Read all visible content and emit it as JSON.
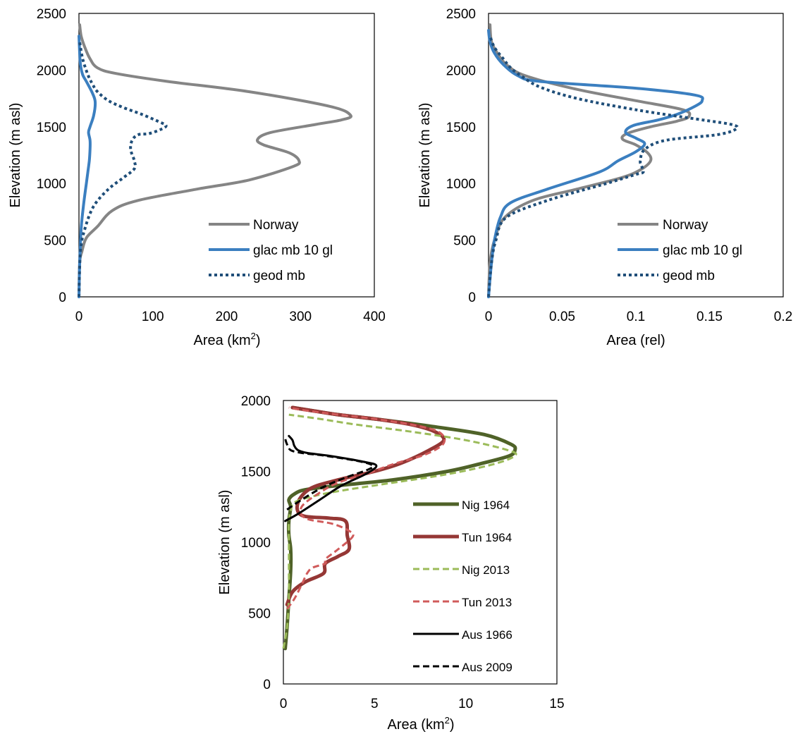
{
  "colors": {
    "norway": "#858585",
    "glac_mb": "#3b7fc0",
    "geod_mb": "#1f4e79",
    "nig1964": "#4f6228",
    "tun1964": "#953735",
    "nig2013": "#9bbb59",
    "tun2013": "#d05b5b",
    "aus1966": "#000000",
    "aus2009": "#000000"
  },
  "chart_data": [
    {
      "type": "line",
      "xlabel": "Area (km",
      "xlabel_sup": "2",
      "xlabel_end": ")",
      "ylabel": "Elevation (m asl)",
      "xlim": [
        0,
        400
      ],
      "ylim": [
        0,
        2500
      ],
      "xticks": [
        "0",
        "100",
        "200",
        "300",
        "400"
      ],
      "yticks": [
        "0",
        "500",
        "1000",
        "1500",
        "2000",
        "2500"
      ],
      "legend": "bottom-right",
      "series": [
        {
          "name": "Norway",
          "style": "solid",
          "color_key": "norway",
          "x": [
            0,
            1,
            4,
            10,
            25,
            45,
            80,
            160,
            230,
            290,
            298,
            285,
            250,
            242,
            260,
            320,
            355,
            368,
            340,
            230,
            120,
            50,
            25,
            15,
            8,
            3,
            1
          ],
          "y": [
            0,
            300,
            400,
            520,
            620,
            760,
            850,
            950,
            1030,
            1150,
            1200,
            1270,
            1340,
            1390,
            1450,
            1520,
            1560,
            1600,
            1680,
            1810,
            1900,
            1970,
            2020,
            2100,
            2200,
            2300,
            2400
          ]
        },
        {
          "name": "glac mb 10 gl",
          "style": "solid",
          "color_key": "glac_mb",
          "x": [
            0,
            1,
            3,
            6,
            10,
            12,
            14,
            15,
            15,
            13,
            15,
            20,
            22,
            18,
            10,
            5,
            2,
            1,
            0
          ],
          "y": [
            0,
            300,
            600,
            800,
            1000,
            1100,
            1200,
            1300,
            1380,
            1450,
            1500,
            1600,
            1720,
            1800,
            1900,
            1960,
            2050,
            2150,
            2300
          ]
        },
        {
          "name": "geod mb",
          "style": "dotted",
          "color_key": "geod_mb",
          "x": [
            0,
            2,
            8,
            20,
            40,
            60,
            75,
            75,
            70,
            72,
            80,
            95,
            112,
            118,
            110,
            85,
            60,
            40,
            25,
            18,
            12,
            5,
            1
          ],
          "y": [
            0,
            400,
            600,
            800,
            950,
            1050,
            1130,
            1200,
            1300,
            1380,
            1430,
            1440,
            1480,
            1510,
            1540,
            1610,
            1670,
            1730,
            1810,
            1880,
            1960,
            2100,
            2250
          ]
        }
      ]
    },
    {
      "type": "line",
      "xlabel": "Area (rel)",
      "ylabel": "Elevation (m asl)",
      "xlim": [
        0,
        0.2
      ],
      "ylim": [
        0,
        2500
      ],
      "xticks": [
        "0",
        "0.05",
        "0.1",
        "0.15",
        "0.2"
      ],
      "yticks": [
        "0",
        "500",
        "1000",
        "1500",
        "2000",
        "2500"
      ],
      "legend": "bottom-right",
      "series": [
        {
          "name": "Norway",
          "style": "solid",
          "color_key": "norway",
          "x": [
            0,
            0.001,
            0.004,
            0.011,
            0.03,
            0.06,
            0.09,
            0.103,
            0.11,
            0.108,
            0.1,
            0.091,
            0.094,
            0.11,
            0.128,
            0.136,
            0.132,
            0.1,
            0.06,
            0.025,
            0.012,
            0.006,
            0.002,
            0.001
          ],
          "y": [
            0,
            300,
            500,
            700,
            850,
            950,
            1050,
            1120,
            1200,
            1270,
            1340,
            1390,
            1440,
            1500,
            1550,
            1590,
            1650,
            1730,
            1830,
            1950,
            2050,
            2150,
            2250,
            2400
          ]
        },
        {
          "name": "glac mb 10 gl",
          "style": "solid",
          "color_key": "glac_mb",
          "x": [
            0,
            0.002,
            0.004,
            0.008,
            0.015,
            0.04,
            0.075,
            0.088,
            0.1,
            0.106,
            0.1,
            0.093,
            0.098,
            0.115,
            0.128,
            0.14,
            0.145,
            0.14,
            0.1,
            0.035,
            0.02,
            0.01,
            0.004,
            0.001,
            0
          ],
          "y": [
            0,
            300,
            500,
            700,
            830,
            950,
            1100,
            1200,
            1280,
            1350,
            1400,
            1450,
            1510,
            1560,
            1610,
            1680,
            1730,
            1780,
            1840,
            1900,
            1950,
            2050,
            2150,
            2250,
            2350
          ]
        },
        {
          "name": "geod mb",
          "style": "dotted",
          "color_key": "geod_mb",
          "x": [
            0,
            0.002,
            0.005,
            0.012,
            0.04,
            0.08,
            0.1,
            0.105,
            0.104,
            0.103,
            0.106,
            0.12,
            0.155,
            0.168,
            0.165,
            0.14,
            0.1,
            0.06,
            0.035,
            0.022,
            0.015,
            0.01,
            0.004,
            0.001
          ],
          "y": [
            0,
            300,
            500,
            700,
            850,
            1000,
            1080,
            1100,
            1150,
            1200,
            1300,
            1380,
            1430,
            1480,
            1520,
            1570,
            1650,
            1750,
            1850,
            1950,
            2020,
            2100,
            2200,
            2300
          ]
        }
      ]
    },
    {
      "type": "line",
      "xlabel": "Area (km",
      "xlabel_sup": "2",
      "xlabel_end": ")",
      "ylabel": "Elevation (m asl)",
      "xlim": [
        0,
        15
      ],
      "ylim": [
        0,
        2000
      ],
      "xticks": [
        "0",
        "5",
        "10",
        "15"
      ],
      "yticks": [
        "0",
        "500",
        "1000",
        "1500",
        "2000"
      ],
      "legend": "right",
      "series": [
        {
          "name": "Nig 1964",
          "style": "solid",
          "color_key": "nig1964",
          "width": 5,
          "x": [
            0.1,
            0.2,
            0.3,
            0.4,
            0.4,
            0.3,
            0.3,
            0.4,
            0.3,
            0.6,
            1.2,
            3,
            6,
            9,
            11,
            12.4,
            12.7,
            12.5,
            11,
            8,
            5,
            3,
            1.5,
            0.5
          ],
          "y": [
            250,
            400,
            600,
            800,
            950,
            1050,
            1150,
            1250,
            1300,
            1340,
            1370,
            1400,
            1440,
            1500,
            1560,
            1610,
            1650,
            1690,
            1760,
            1820,
            1870,
            1900,
            1930,
            1950
          ]
        },
        {
          "name": "Tun 1964",
          "style": "solid",
          "color_key": "tun1964",
          "width": 5,
          "x": [
            0.2,
            0.5,
            1.2,
            2.2,
            2.3,
            3,
            3.6,
            3.5,
            3.4,
            2.5,
            1,
            0.8,
            1.5,
            3,
            5,
            6.5,
            8,
            8.8,
            8.3,
            7,
            5,
            3,
            1.5,
            0.5
          ],
          "y": [
            560,
            650,
            720,
            780,
            850,
            900,
            950,
            1050,
            1150,
            1170,
            1190,
            1280,
            1380,
            1440,
            1500,
            1560,
            1650,
            1720,
            1780,
            1830,
            1870,
            1900,
            1930,
            1950
          ]
        },
        {
          "name": "Nig 2013",
          "style": "dashed",
          "color_key": "nig2013",
          "width": 3,
          "x": [
            0,
            0.2,
            0.3,
            0.3,
            0.3,
            0.3,
            0.4,
            0.6,
            1.5,
            3,
            6,
            9,
            11.5,
            12.7,
            12.3,
            10,
            7,
            4,
            2,
            0.3
          ],
          "y": [
            250,
            400,
            600,
            800,
            1000,
            1150,
            1220,
            1280,
            1320,
            1360,
            1420,
            1480,
            1550,
            1610,
            1650,
            1720,
            1780,
            1830,
            1870,
            1900
          ]
        },
        {
          "name": "Tun 2013",
          "style": "dashed",
          "color_key": "tun2013",
          "width": 3,
          "x": [
            0.2,
            0.6,
            1,
            1.3,
            1.6,
            2.3,
            2.3,
            3,
            3.8,
            3.6,
            2.7,
            1.2,
            1,
            2,
            3,
            4.5,
            6,
            7.8,
            8.8,
            8.5,
            7,
            5,
            3,
            1.2,
            0.3
          ],
          "y": [
            530,
            600,
            700,
            780,
            820,
            850,
            880,
            950,
            1040,
            1080,
            1130,
            1170,
            1250,
            1350,
            1420,
            1480,
            1550,
            1620,
            1700,
            1780,
            1830,
            1870,
            1900,
            1930,
            1950
          ]
        },
        {
          "name": "Aus 1966",
          "style": "solid",
          "color_key": "aus1966",
          "width": 3,
          "x": [
            0.1,
            0.8,
            2,
            3.2,
            4.5,
            5.1,
            4.3,
            2.5,
            1.3,
            0.8,
            0.6,
            0.5,
            0.3
          ],
          "y": [
            1150,
            1200,
            1300,
            1400,
            1480,
            1540,
            1570,
            1610,
            1630,
            1650,
            1680,
            1720,
            1750
          ]
        },
        {
          "name": "Aus 2009",
          "style": "dashed",
          "color_key": "aus2009",
          "width": 3,
          "x": [
            0.2,
            1,
            2.2,
            3.5,
            4.6,
            4.9,
            4.2,
            2.3,
            1,
            0.4,
            0.2,
            0.1
          ],
          "y": [
            1230,
            1300,
            1390,
            1460,
            1510,
            1540,
            1570,
            1610,
            1630,
            1650,
            1690,
            1730
          ]
        }
      ]
    }
  ]
}
